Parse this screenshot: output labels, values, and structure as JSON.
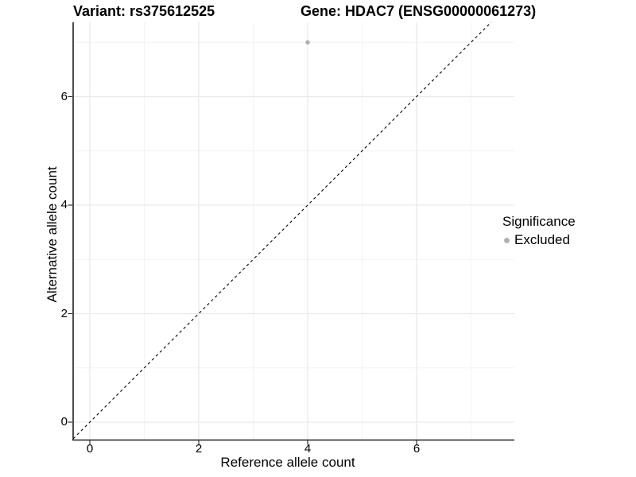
{
  "titles": {
    "variant": "Variant: rs375612525",
    "gene": "Gene: HDAC7 (ENSG00000061273)"
  },
  "axes": {
    "x": {
      "label": "Reference allele count",
      "tick_labels": [
        "0",
        "2",
        "4",
        "6"
      ],
      "tick_values": [
        0,
        2,
        4,
        6
      ]
    },
    "y": {
      "label": "Alternative allele count",
      "tick_labels": [
        "0",
        "2",
        "4",
        "6"
      ],
      "tick_values": [
        0,
        2,
        4,
        6
      ]
    }
  },
  "legend": {
    "title": "Significance",
    "entries": [
      {
        "label": "Excluded",
        "color": "#b0b0b0"
      }
    ]
  },
  "colors": {
    "point": "#b0b0b0",
    "grid_major": "#e9e9e9",
    "grid_minor": "#f3f3f3",
    "axis_line": "#222222",
    "tick_mark": "#333333",
    "identity_line": "#000000",
    "text": "#000000"
  },
  "chart_data": {
    "type": "scatter",
    "title": "Variant: rs375612525    Gene: HDAC7 (ENSG00000061273)",
    "xlabel": "Reference allele count",
    "ylabel": "Alternative allele count",
    "xlim": [
      -0.31,
      7.8
    ],
    "ylim": [
      -0.32,
      7.37
    ],
    "x_major_ticks": [
      0,
      2,
      4,
      6
    ],
    "y_major_ticks": [
      0,
      2,
      4,
      6
    ],
    "x_minor_ticks": [
      1,
      3,
      5,
      7
    ],
    "y_minor_ticks": [
      1,
      3,
      5,
      7
    ],
    "grid": true,
    "legend_position": "right",
    "series": [
      {
        "name": "Excluded",
        "color": "#b0b0b0",
        "points": [
          {
            "x": 4,
            "y": 7
          }
        ]
      }
    ],
    "reference_line": {
      "type": "identity",
      "slope": 1,
      "intercept": 0,
      "style": "dashed",
      "color": "#000000"
    }
  }
}
